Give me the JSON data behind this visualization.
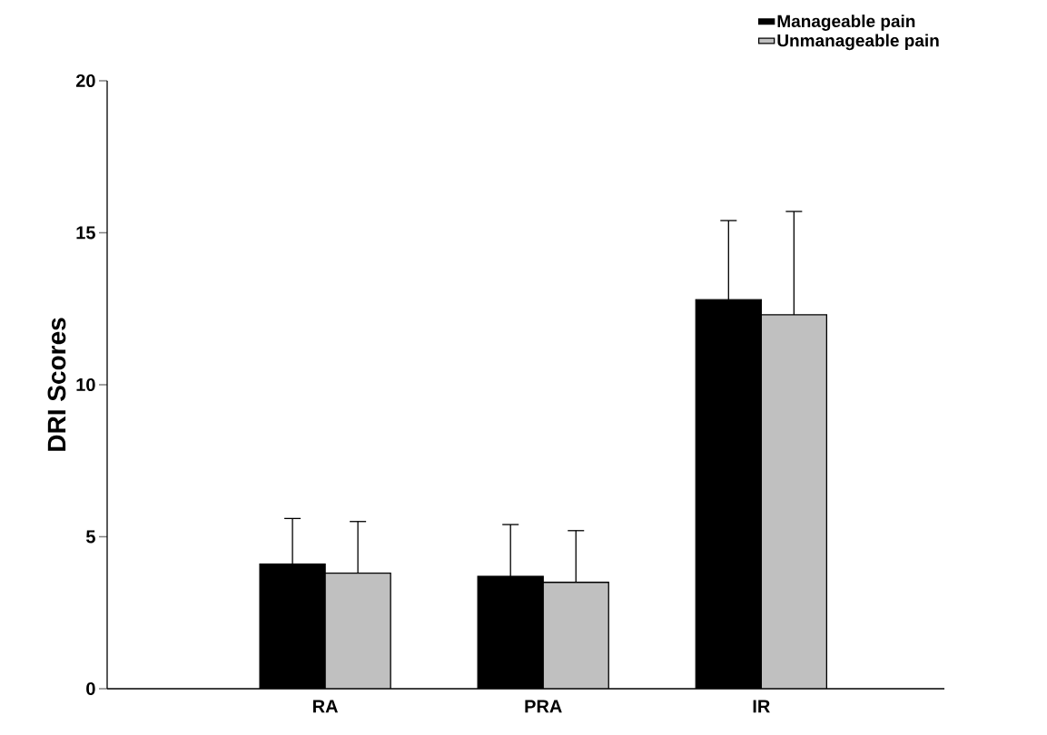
{
  "chart_data": {
    "type": "bar",
    "ylabel": "DRI Scores",
    "categories": [
      "RA",
      "PRA",
      "IR"
    ],
    "series": [
      {
        "name": "Manageable pain",
        "color": "#000000",
        "values": [
          4.1,
          3.7,
          12.8
        ],
        "errors": [
          [
            4.1,
            5.6
          ],
          [
            3.7,
            5.4
          ],
          [
            12.8,
            15.4
          ]
        ]
      },
      {
        "name": "Unmanageable pain",
        "color": "#c0c0c0",
        "values": [
          3.8,
          3.5,
          12.3
        ],
        "errors": [
          [
            3.8,
            5.5
          ],
          [
            3.5,
            5.2
          ],
          [
            12.3,
            15.7
          ]
        ]
      }
    ],
    "ylim": [
      0,
      20
    ],
    "yticks": [
      0,
      5,
      10,
      15,
      20
    ],
    "grid": false,
    "legend": "top right"
  }
}
